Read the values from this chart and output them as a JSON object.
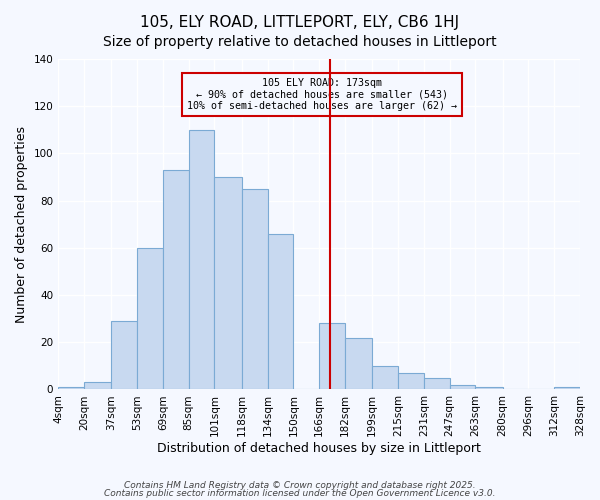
{
  "title": "105, ELY ROAD, LITTLEPORT, ELY, CB6 1HJ",
  "subtitle": "Size of property relative to detached houses in Littleport",
  "xlabel": "Distribution of detached houses by size in Littleport",
  "ylabel": "Number of detached properties",
  "bin_labels": [
    "4sqm",
    "20sqm",
    "37sqm",
    "53sqm",
    "69sqm",
    "85sqm",
    "101sqm",
    "118sqm",
    "134sqm",
    "150sqm",
    "166sqm",
    "182sqm",
    "199sqm",
    "215sqm",
    "231sqm",
    "247sqm",
    "263sqm",
    "280sqm",
    "296sqm",
    "312sqm",
    "328sqm"
  ],
  "bar_heights": [
    1,
    3,
    29,
    60,
    93,
    110,
    90,
    85,
    66,
    0,
    28,
    22,
    10,
    7,
    5,
    2,
    1,
    0,
    0,
    1
  ],
  "bar_color": "#c8d9f0",
  "bar_edge_color": "#7baad4",
  "vline_x": 173,
  "vline_color": "#cc0000",
  "annotation_text": "105 ELY ROAD: 173sqm\n← 90% of detached houses are smaller (543)\n10% of semi-detached houses are larger (62) →",
  "annotation_box_color": "#cc0000",
  "annotation_text_color": "#000000",
  "ylim": [
    0,
    140
  ],
  "yticks": [
    0,
    20,
    40,
    60,
    80,
    100,
    120,
    140
  ],
  "bin_edges": [
    4,
    20,
    37,
    53,
    69,
    85,
    101,
    118,
    134,
    150,
    166,
    182,
    199,
    215,
    231,
    247,
    263,
    280,
    296,
    312,
    328
  ],
  "footer1": "Contains HM Land Registry data © Crown copyright and database right 2025.",
  "footer2": "Contains public sector information licensed under the Open Government Licence v3.0.",
  "background_color": "#f5f8ff",
  "grid_color": "#ffffff",
  "title_fontsize": 11,
  "subtitle_fontsize": 10,
  "axis_label_fontsize": 9,
  "tick_fontsize": 7.5,
  "footer_fontsize": 6.5
}
